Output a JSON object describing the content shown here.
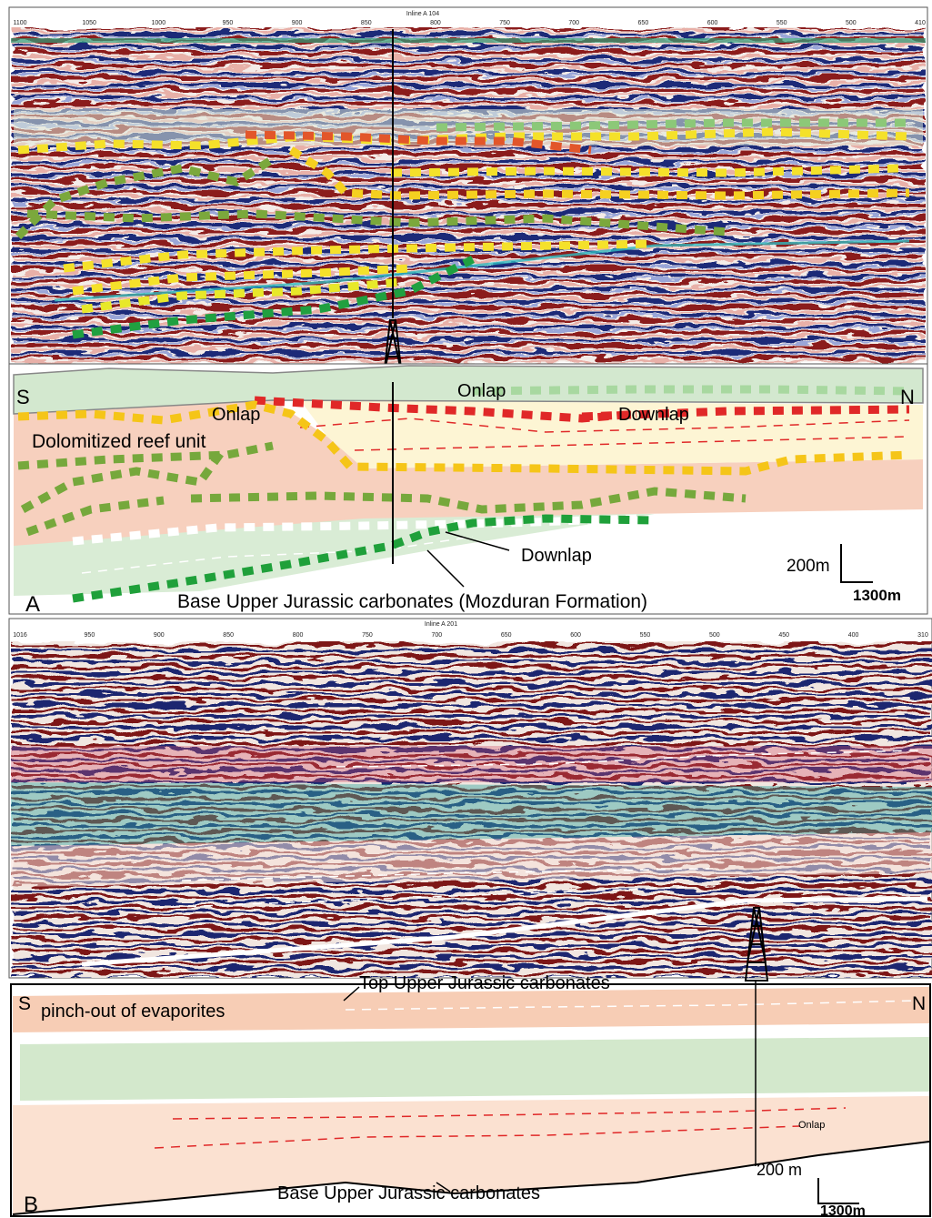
{
  "panel_a": {
    "seismic": {
      "inline_label": "Inline A 104",
      "trace_labels": [
        "1100",
        "1050",
        "1000",
        "950",
        "900",
        "850",
        "800",
        "750",
        "700",
        "650",
        "600",
        "550",
        "500",
        "410"
      ]
    },
    "interpretation": {
      "label": "A",
      "south": "S",
      "north": "N",
      "onlap_top": "Onlap",
      "onlap_left": "Onlap",
      "downlap_right": "Downlap",
      "unit": "Dolomitized reef unit",
      "downlap_bottom": "Downlap",
      "base": "Base Upper Jurassic carbonates (Mozduran Formation)",
      "scale_vertical": "200m",
      "scale_horizontal": "1300m"
    }
  },
  "panel_b": {
    "seismic": {
      "inline_label": "Inline A 201",
      "trace_labels": [
        "1016",
        "950",
        "900",
        "850",
        "800",
        "750",
        "700",
        "650",
        "600",
        "550",
        "500",
        "450",
        "400",
        "310"
      ]
    },
    "interpretation": {
      "label": "B",
      "south": "S",
      "north": "N",
      "top": "Top Upper Jurassic carbonates",
      "pinchout": "pinch-out of evaporites",
      "onlap": "Onlap",
      "base": "Base Upper Jurassic carbonates",
      "scale_vertical": "200 m",
      "scale_horizontal": "1300m"
    }
  }
}
